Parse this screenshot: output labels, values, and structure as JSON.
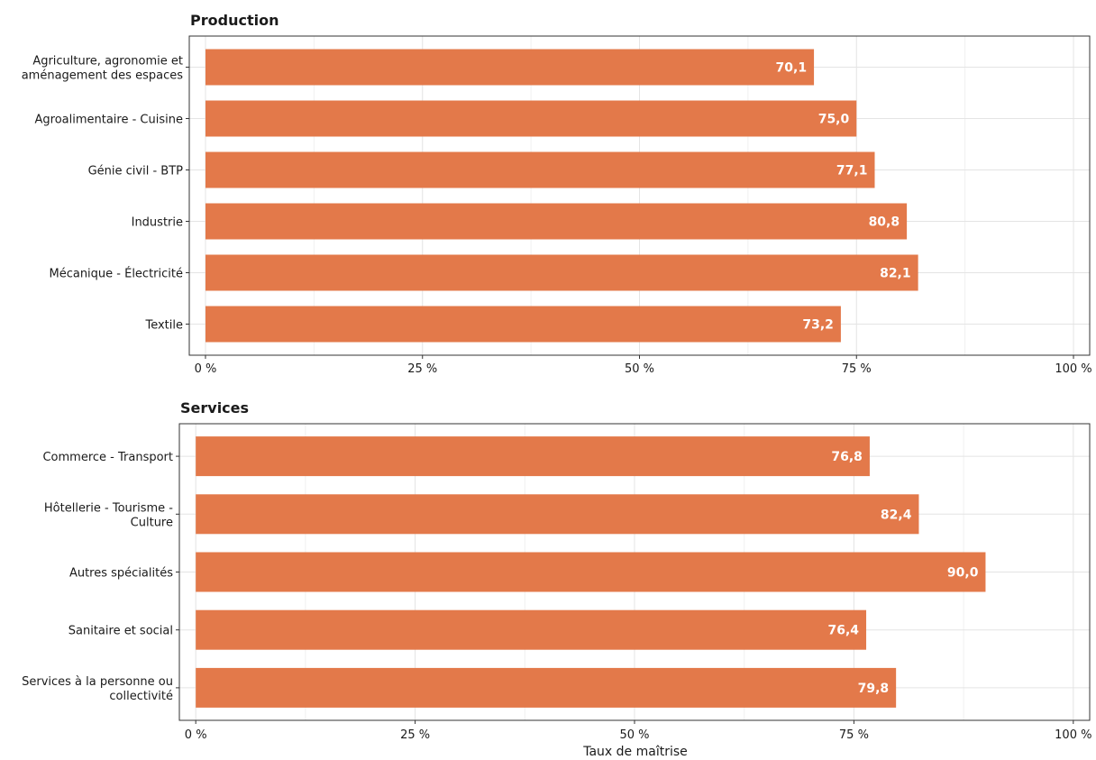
{
  "chart_data": [
    {
      "type": "bar",
      "orientation": "horizontal",
      "title": "Production",
      "categories": [
        [
          "Agriculture, agronomie et",
          "aménagement des espaces"
        ],
        [
          "Agroalimentaire - Cuisine"
        ],
        [
          "Génie civil - BTP"
        ],
        [
          "Industrie"
        ],
        [
          "Mécanique - Électricité"
        ],
        [
          "Textile"
        ]
      ],
      "values": [
        70.1,
        75.0,
        77.1,
        80.8,
        82.1,
        73.2
      ],
      "value_labels": [
        "70,1",
        "75,0",
        "77,1",
        "80,8",
        "82,1",
        "73,2"
      ],
      "xlim": [
        0,
        100
      ],
      "xticks": [
        "0 %",
        "25 %",
        "50 %",
        "75 %",
        "100 %"
      ],
      "grid": true,
      "bar_color": "#E3794A"
    },
    {
      "type": "bar",
      "orientation": "horizontal",
      "title": "Services",
      "categories": [
        [
          "Commerce - Transport"
        ],
        [
          "Hôtellerie - Tourisme -",
          "Culture"
        ],
        [
          "Autres spécialités"
        ],
        [
          "Sanitaire et social"
        ],
        [
          "Services à la personne ou",
          "collectivité"
        ]
      ],
      "values": [
        76.8,
        82.4,
        90.0,
        76.4,
        79.8
      ],
      "value_labels": [
        "76,8",
        "82,4",
        "90,0",
        "76,4",
        "79,8"
      ],
      "xlim": [
        0,
        100
      ],
      "xticks": [
        "0 %",
        "25 %",
        "50 %",
        "75 %",
        "100 %"
      ],
      "xlabel": "Taux de maîtrise",
      "grid": true,
      "bar_color": "#E3794A"
    }
  ]
}
